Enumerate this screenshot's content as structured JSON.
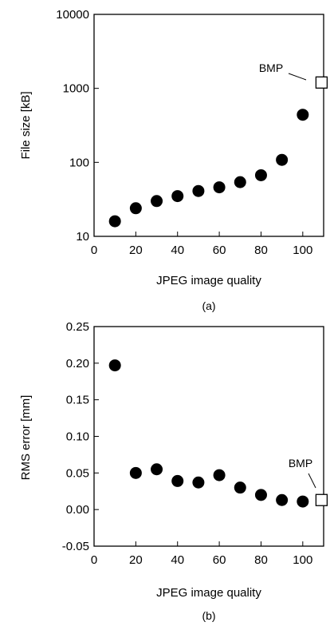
{
  "chart_data": [
    {
      "type": "scatter",
      "panel_label": "(a)",
      "xlabel": "JPEG image quality",
      "ylabel": "File size [kB]",
      "xlim": [
        0,
        110
      ],
      "ylim": [
        10,
        10000
      ],
      "yscale": "log",
      "xticks": [
        0,
        20,
        40,
        60,
        80,
        100
      ],
      "yticks": [
        10,
        100,
        1000,
        10000
      ],
      "xtick_labels": [
        "0",
        "20",
        "40",
        "60",
        "80",
        "100"
      ],
      "ytick_labels": [
        "10",
        "100",
        "1000",
        "10000"
      ],
      "grid": false,
      "series": [
        {
          "marker": "filled-circle",
          "points": [
            [
              10,
              16
            ],
            [
              20,
              24
            ],
            [
              30,
              30
            ],
            [
              40,
              35
            ],
            [
              50,
              41
            ],
            [
              60,
              46
            ],
            [
              70,
              54
            ],
            [
              80,
              67
            ],
            [
              90,
              108
            ],
            [
              100,
              440
            ]
          ]
        },
        {
          "marker": "open-square",
          "points": [
            [
              109,
              1200
            ]
          ]
        }
      ],
      "annotation": {
        "text": "BMP",
        "x": 109,
        "y": 1200
      }
    },
    {
      "type": "scatter",
      "panel_label": "(b)",
      "xlabel": "JPEG image quality",
      "ylabel": "RMS error [mm]",
      "xlim": [
        0,
        110
      ],
      "ylim": [
        -0.05,
        0.25
      ],
      "yscale": "linear",
      "xticks": [
        0,
        20,
        40,
        60,
        80,
        100
      ],
      "yticks": [
        -0.05,
        0.0,
        0.05,
        0.1,
        0.15,
        0.2,
        0.25
      ],
      "xtick_labels": [
        "0",
        "20",
        "40",
        "60",
        "80",
        "100"
      ],
      "ytick_labels": [
        "-0.05",
        "0.00",
        "0.05",
        "0.10",
        "0.15",
        "0.20",
        "0.25"
      ],
      "grid": false,
      "series": [
        {
          "marker": "filled-circle",
          "points": [
            [
              10,
              0.197
            ],
            [
              20,
              0.05
            ],
            [
              30,
              0.055
            ],
            [
              40,
              0.039
            ],
            [
              50,
              0.037
            ],
            [
              60,
              0.047
            ],
            [
              70,
              0.03
            ],
            [
              80,
              0.02
            ],
            [
              90,
              0.013
            ],
            [
              100,
              0.011
            ]
          ]
        },
        {
          "marker": "open-square",
          "points": [
            [
              109,
              0.013
            ]
          ]
        }
      ],
      "annotation": {
        "text": "BMP",
        "x": 109,
        "y": 0.013
      }
    }
  ]
}
